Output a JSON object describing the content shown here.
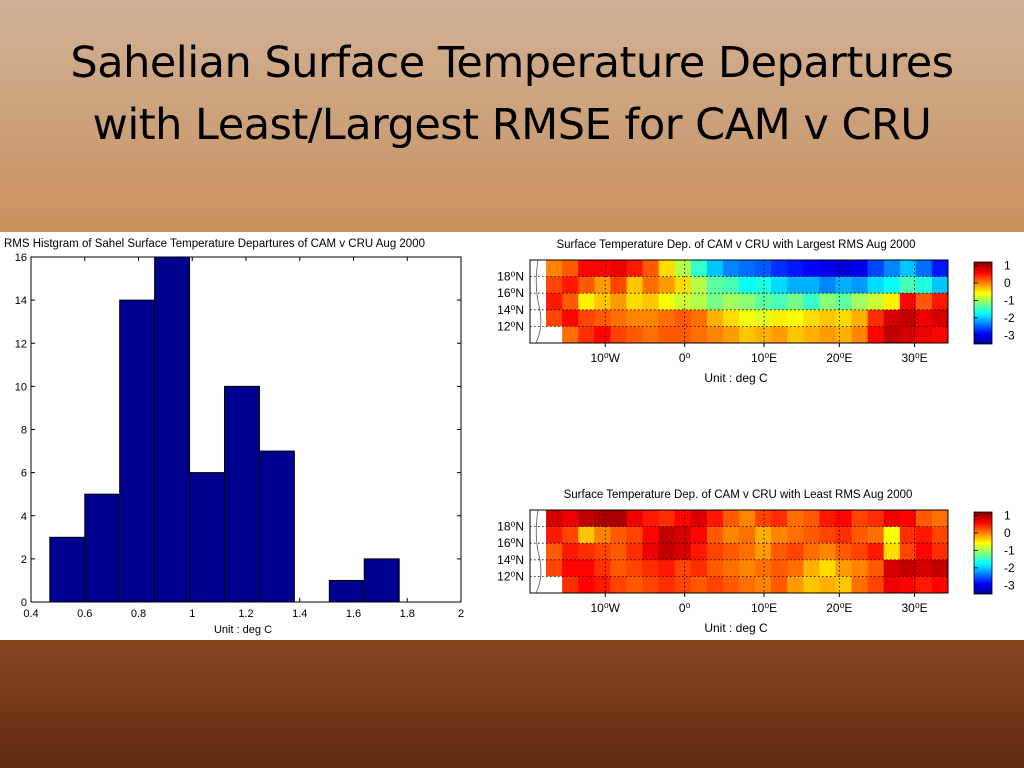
{
  "slide": {
    "title_line1": "Sahelian Surface Temperature Departures",
    "title_line2": "with Least/Largest RMSE for CAM v CRU"
  },
  "colors": {
    "bar_fill": "#00008f",
    "header_gradient_top": "#d2b196",
    "header_gradient_bottom": "#c0854d",
    "footer_band": "#75391a"
  },
  "chart_data": [
    {
      "type": "bar",
      "title": "RMS Histgram of Sahel Surface Temperature Departures of CAM v CRU   Aug 2000",
      "xlabel": "Unit : deg C",
      "ylabel": "",
      "bin_edges": [
        0.47,
        0.6,
        0.73,
        0.86,
        0.99,
        1.12,
        1.25,
        1.38,
        1.51,
        1.64,
        1.77
      ],
      "values": [
        3,
        5,
        14,
        16,
        6,
        10,
        7,
        0,
        1,
        2
      ],
      "xlim": [
        0.4,
        2.0
      ],
      "ylim": [
        0,
        16
      ],
      "xticks": [
        "0.4",
        "0.6",
        "0.8",
        "1",
        "1.2",
        "1.4",
        "1.6",
        "1.8",
        "2"
      ],
      "yticks": [
        "0",
        "2",
        "4",
        "6",
        "8",
        "10",
        "12",
        "14",
        "16"
      ],
      "grid": false
    },
    {
      "type": "heatmap",
      "title": "Surface Temperature Dep. of CAM v CRU with Largest RMS Aug 2000",
      "xlabel": "Unit : deg C",
      "lat_ticks": [
        "18⁰N",
        "16⁰N",
        "14⁰N",
        "12⁰N"
      ],
      "lon_ticks": [
        "10⁰W",
        "0⁰",
        "10⁰E",
        "20⁰E",
        "30⁰E"
      ],
      "colorbar_ticks": [
        "1",
        "0",
        "-1",
        "-2",
        "-3"
      ],
      "clim": [
        -3.5,
        1.2
      ],
      "grid": "dotted",
      "values": [
        [
          -9,
          0.0,
          0.2,
          0.6,
          0.6,
          0.7,
          0.5,
          0.2,
          -0.4,
          -0.9,
          -1.5,
          -2.0,
          -2.3,
          -2.4,
          -2.5,
          -2.7,
          -2.8,
          -2.9,
          -3.0,
          -3.1,
          -3.0,
          -2.6,
          -2.3,
          -2.0,
          -2.4,
          -2.8
        ],
        [
          -9,
          0.3,
          0.5,
          0.2,
          -0.1,
          0.3,
          -0.3,
          0.1,
          -0.1,
          -0.4,
          -0.9,
          -1.3,
          -1.4,
          -1.7,
          -1.6,
          -1.9,
          -2.1,
          -2.1,
          -2.3,
          -2.1,
          -2.2,
          -1.9,
          -1.7,
          -1.4,
          -1.6,
          -2.0
        ],
        [
          -9,
          0.5,
          0.2,
          -0.5,
          -0.3,
          -0.1,
          -0.4,
          -0.3,
          -0.6,
          -0.8,
          -0.9,
          -1.2,
          -1.0,
          -1.1,
          -1.3,
          -1.4,
          -1.2,
          -1.5,
          -1.1,
          -1.3,
          -1.0,
          -0.8,
          -0.5,
          0.6,
          0.2,
          0.5
        ],
        [
          -9,
          0.3,
          0.6,
          0.3,
          0.2,
          0.1,
          0.0,
          0.0,
          0.1,
          0.2,
          0.1,
          -0.2,
          -0.4,
          -0.6,
          -0.7,
          -0.5,
          -0.6,
          -0.4,
          -0.3,
          -0.4,
          -0.2,
          0.4,
          0.8,
          0.9,
          0.7,
          0.8
        ],
        [
          -9,
          -9,
          0.1,
          0.4,
          0.6,
          0.3,
          0.2,
          0.1,
          0.2,
          0.2,
          0.1,
          0.0,
          -0.1,
          -0.3,
          -0.2,
          -0.1,
          -0.3,
          -0.2,
          -0.1,
          -0.2,
          0.0,
          0.6,
          0.9,
          0.8,
          0.7,
          0.6
        ]
      ]
    },
    {
      "type": "heatmap",
      "title": "Surface Temperature Dep. of CAM v CRU with Least RMS Aug 2000",
      "xlabel": "Unit : deg C",
      "lat_ticks": [
        "18⁰N",
        "16⁰N",
        "14⁰N",
        "12⁰N"
      ],
      "lon_ticks": [
        "10⁰W",
        "0⁰",
        "10⁰E",
        "20⁰E",
        "30⁰E"
      ],
      "colorbar_ticks": [
        "1",
        "0",
        "-1",
        "-2",
        "-3"
      ],
      "clim": [
        -3.5,
        1.2
      ],
      "grid": "dotted",
      "values": [
        [
          -9,
          0.8,
          0.7,
          0.9,
          1.0,
          1.0,
          0.7,
          0.5,
          0.4,
          0.6,
          0.8,
          0.5,
          0.2,
          0.0,
          0.3,
          0.4,
          0.1,
          0.2,
          0.5,
          0.6,
          0.3,
          0.4,
          0.7,
          0.6,
          0.2,
          0.1
        ],
        [
          -9,
          0.5,
          0.3,
          -0.3,
          0.0,
          0.2,
          0.3,
          0.6,
          0.9,
          0.8,
          0.6,
          0.2,
          0.0,
          0.1,
          -0.2,
          0.0,
          0.1,
          0.2,
          0.3,
          0.4,
          0.2,
          0.1,
          -0.6,
          0.4,
          0.5,
          0.3
        ],
        [
          -9,
          0.2,
          0.5,
          0.4,
          0.3,
          0.2,
          0.4,
          0.7,
          0.9,
          0.8,
          0.5,
          0.3,
          0.2,
          0.1,
          -0.1,
          0.2,
          0.3,
          0.1,
          0.0,
          0.2,
          0.3,
          0.5,
          -0.4,
          0.3,
          0.6,
          0.4
        ],
        [
          -9,
          0.3,
          0.6,
          0.6,
          0.4,
          0.2,
          0.3,
          0.4,
          0.5,
          0.3,
          0.4,
          0.2,
          0.1,
          0.0,
          0.1,
          0.2,
          0.1,
          -0.2,
          -0.4,
          -0.1,
          0.0,
          0.2,
          0.8,
          0.9,
          0.8,
          0.9
        ],
        [
          -9,
          -9,
          0.4,
          0.6,
          0.5,
          0.3,
          0.2,
          0.3,
          0.4,
          0.3,
          0.2,
          0.3,
          0.2,
          0.1,
          0.0,
          0.2,
          -0.1,
          -0.3,
          -0.2,
          -0.3,
          0.1,
          0.3,
          0.7,
          0.6,
          0.5,
          0.6
        ]
      ]
    }
  ]
}
